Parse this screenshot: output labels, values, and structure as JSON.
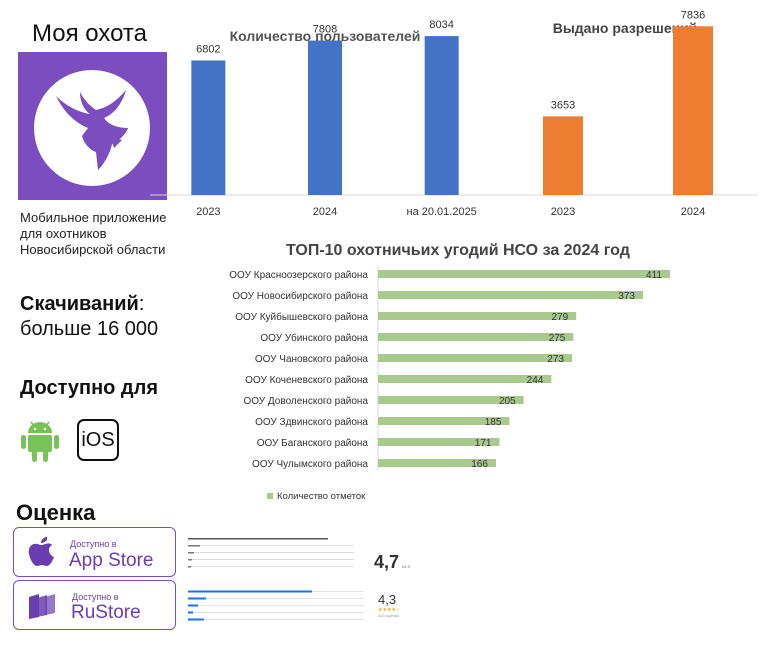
{
  "app": {
    "title": "Моя охота",
    "description": "Мобильное приложение для охотников Новосибирской области"
  },
  "downloads": {
    "label": "Скачиваний",
    "colon": ":",
    "value": "больше 16 000"
  },
  "availability": {
    "label": "Доступно для",
    "ios_text": "iOS"
  },
  "rating": {
    "label": "Оценка",
    "app_store": {
      "badge_sub": "Доступно в",
      "badge_name": "App Store",
      "score": "4,7",
      "score_note": "из 5"
    },
    "ru_store": {
      "badge_sub": "Доступно в",
      "badge_name": "RuStore",
      "score": "4,3",
      "stars": "★★★★☆",
      "reviews_note": "403 оценки"
    }
  },
  "colors": {
    "brand": "#7b4dbf",
    "blue_bar": "#4472c4",
    "orange_bar": "#ed7d31",
    "green_bar": "#a9c98f",
    "android": "#78c257"
  },
  "chart_data": [
    {
      "type": "bar",
      "title": "Количество пользователей",
      "categories": [
        "2023",
        "2024",
        "на 20.01.2025"
      ],
      "values": [
        6802,
        7808,
        8034
      ],
      "ylim": [
        0,
        9000
      ],
      "color": "#4472c4"
    },
    {
      "type": "bar",
      "title": "Выдано разрешений",
      "categories": [
        "2023",
        "2024"
      ],
      "values": [
        3653,
        7836
      ],
      "ylim": [
        0,
        8500
      ],
      "color": "#ed7d31"
    },
    {
      "type": "bar",
      "orientation": "horizontal",
      "title": "ТОП-10 охотничьих угодий НСО за 2024 год",
      "categories": [
        "ООУ Красноозерского района",
        "ООУ Новосибирского района",
        "ООУ Куйбышевского района",
        "ООУ Убинского района",
        "ООУ Чановского района",
        "ООУ Коченевского района",
        "ООУ Доволенского района",
        "ООУ Здвинского района",
        "ООУ Баганского района",
        "ООУ Чулымского района"
      ],
      "series": [
        {
          "name": "Количество отметок",
          "values": [
            411,
            373,
            279,
            275,
            273,
            244,
            205,
            185,
            171,
            166
          ]
        }
      ],
      "legend": "bottom",
      "xlim": [
        0,
        450
      ],
      "color": "#a9c98f"
    }
  ]
}
